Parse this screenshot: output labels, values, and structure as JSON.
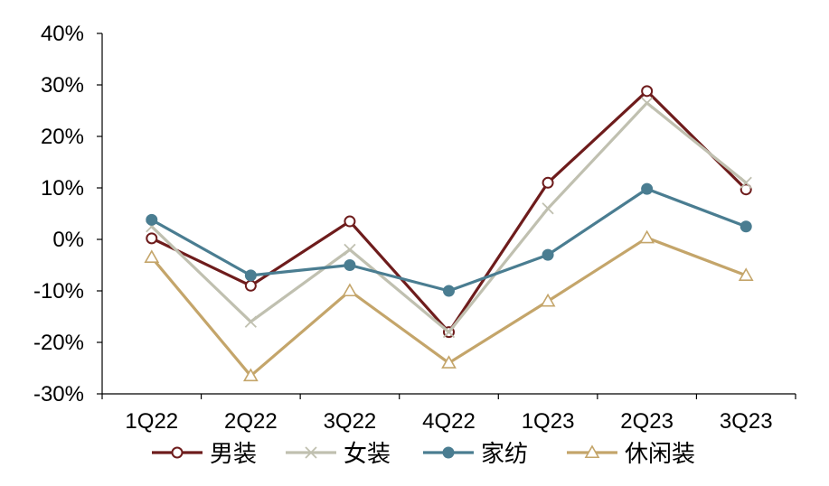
{
  "chart_data": {
    "type": "line",
    "title": "",
    "xlabel": "",
    "ylabel": "",
    "categories": [
      "1Q22",
      "2Q22",
      "3Q22",
      "4Q22",
      "1Q23",
      "2Q23",
      "3Q23"
    ],
    "y_ticks": [
      "40%",
      "30%",
      "20%",
      "10%",
      "0%",
      "-10%",
      "-20%",
      "-30%"
    ],
    "ylim": [
      -30,
      40
    ],
    "y_unit": "%",
    "grid": false,
    "legend_position": "bottom",
    "series": [
      {
        "name": "男装",
        "color": "#6e1c1c",
        "marker": "circle-open",
        "values": [
          0.2,
          -9.0,
          3.5,
          -18.0,
          11.0,
          28.8,
          9.7
        ]
      },
      {
        "name": "女装",
        "color": "#c0c0b0",
        "marker": "x",
        "values": [
          2.5,
          -16.0,
          -2.0,
          -18.0,
          6.0,
          26.5,
          11.0
        ]
      },
      {
        "name": "家纺",
        "color": "#4a7d91",
        "marker": "circle-filled",
        "values": [
          3.8,
          -7.0,
          -5.0,
          -10.0,
          -3.0,
          9.8,
          2.5
        ]
      },
      {
        "name": "休闲装",
        "color": "#c4a56a",
        "marker": "triangle-open",
        "values": [
          -3.5,
          -26.5,
          -10.0,
          -24.0,
          -12.0,
          0.3,
          -7.0
        ]
      }
    ]
  }
}
